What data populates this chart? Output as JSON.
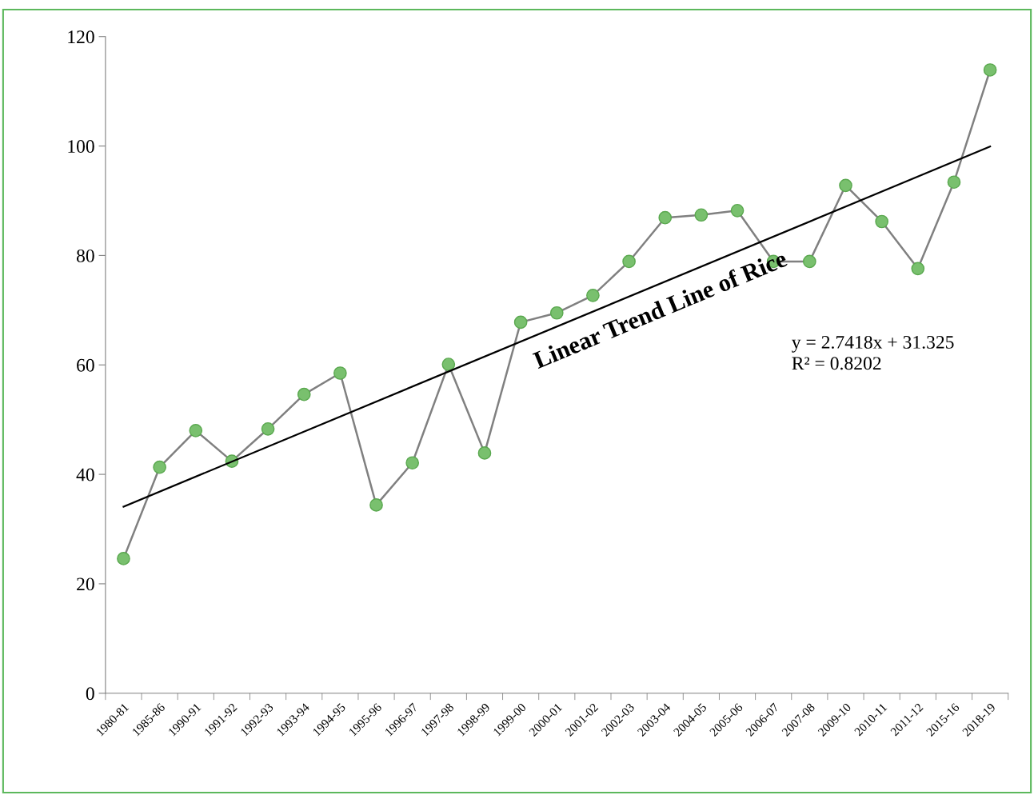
{
  "chart_data": {
    "type": "line",
    "categories": [
      "1980-81",
      "1985-86",
      "1990-91",
      "1991-92",
      "1992-93",
      "1993-94",
      "1994-95",
      "1995-96",
      "1996-97",
      "1997-98",
      "1998-99",
      "1999-00",
      "2000-01",
      "2001-02",
      "2002-03",
      "2003-04",
      "2004-05",
      "2005-06",
      "2006-07",
      "2007-08",
      "2009-10",
      "2010-11",
      "2011-12",
      "2015-16",
      "2018-19"
    ],
    "series": [
      {
        "color": "#808080",
        "marker": "circle",
        "values": [
          24.6,
          41.3,
          48.0,
          42.4,
          48.3,
          54.6,
          58.5,
          34.4,
          42.1,
          60.1,
          43.9,
          67.8,
          69.5,
          72.7,
          78.9,
          86.9,
          87.4,
          88.2,
          78.9,
          78.9,
          92.8,
          86.2,
          77.6,
          93.4,
          113.9
        ]
      },
      {
        "color": "#000000",
        "marker": "none",
        "x": [
          "1980-81",
          "2018-19"
        ],
        "values": [
          34.1,
          99.9
        ]
      }
    ],
    "ylim": [
      0,
      120
    ],
    "yticks": [
      0,
      20,
      40,
      60,
      80,
      100,
      120
    ],
    "grid": false,
    "legend": false,
    "annotations": [
      "Linear Trend Line of Rice",
      "y = 2.7418x + 31.325\nR² = 0.8202"
    ]
  }
}
